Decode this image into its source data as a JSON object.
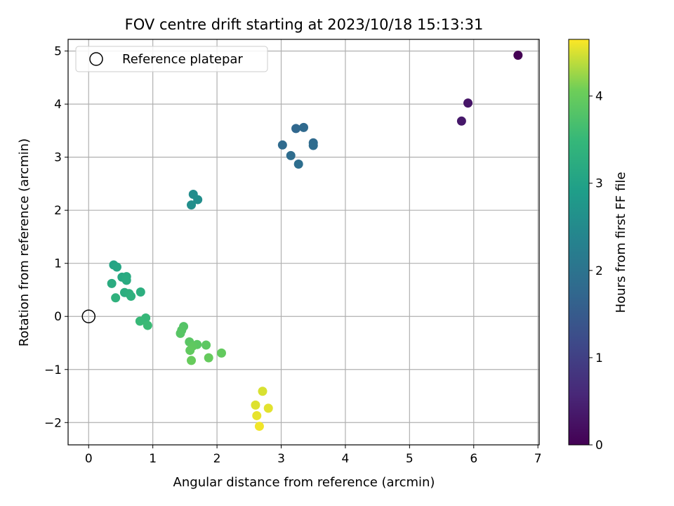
{
  "chart_data": {
    "type": "scatter",
    "title": "FOV centre drift starting at 2023/10/18 15:13:31",
    "xlabel": "Angular distance from reference (arcmin)",
    "ylabel": "Rotation from reference (arcmin)",
    "colorbar_label": "Hours from first FF file",
    "colormap": "viridis",
    "xlim": [
      -0.32,
      7.02
    ],
    "ylim": [
      -2.42,
      5.22
    ],
    "clim": [
      0,
      4.65
    ],
    "x_ticks": [
      0,
      1,
      2,
      3,
      4,
      5,
      6,
      7
    ],
    "y_ticks": [
      -2,
      -1,
      0,
      1,
      2,
      3,
      4,
      5
    ],
    "colorbar_ticks": [
      0,
      1,
      2,
      3,
      4
    ],
    "grid": true,
    "legend": {
      "placement": "top-left",
      "label": "Reference platepar"
    },
    "reference_point": {
      "x": 0,
      "y": 0
    },
    "points": [
      {
        "x": 6.69,
        "y": 4.92,
        "hours": 0.0
      },
      {
        "x": 5.91,
        "y": 4.02,
        "hours": 0.3
      },
      {
        "x": 5.81,
        "y": 3.68,
        "hours": 0.35
      },
      {
        "x": 3.23,
        "y": 3.54,
        "hours": 1.75
      },
      {
        "x": 3.35,
        "y": 3.56,
        "hours": 1.78
      },
      {
        "x": 3.02,
        "y": 3.23,
        "hours": 1.8
      },
      {
        "x": 3.5,
        "y": 3.27,
        "hours": 1.82
      },
      {
        "x": 3.5,
        "y": 3.22,
        "hours": 1.84
      },
      {
        "x": 3.15,
        "y": 3.03,
        "hours": 1.86
      },
      {
        "x": 3.27,
        "y": 2.87,
        "hours": 1.88
      },
      {
        "x": 1.63,
        "y": 2.3,
        "hours": 2.55
      },
      {
        "x": 1.7,
        "y": 2.2,
        "hours": 2.58
      },
      {
        "x": 1.6,
        "y": 2.1,
        "hours": 2.6
      },
      {
        "x": 0.39,
        "y": 0.97,
        "hours": 3.05
      },
      {
        "x": 0.44,
        "y": 0.93,
        "hours": 3.1
      },
      {
        "x": 0.52,
        "y": 0.74,
        "hours": 3.15
      },
      {
        "x": 0.59,
        "y": 0.75,
        "hours": 3.18
      },
      {
        "x": 0.59,
        "y": 0.68,
        "hours": 3.2
      },
      {
        "x": 0.36,
        "y": 0.62,
        "hours": 3.22
      },
      {
        "x": 0.56,
        "y": 0.45,
        "hours": 3.25
      },
      {
        "x": 0.81,
        "y": 0.46,
        "hours": 3.28
      },
      {
        "x": 0.63,
        "y": 0.43,
        "hours": 3.3
      },
      {
        "x": 0.66,
        "y": 0.38,
        "hours": 3.32
      },
      {
        "x": 0.42,
        "y": 0.35,
        "hours": 3.35
      },
      {
        "x": 0.89,
        "y": -0.03,
        "hours": 3.5
      },
      {
        "x": 0.8,
        "y": -0.09,
        "hours": 3.52
      },
      {
        "x": 0.92,
        "y": -0.17,
        "hours": 3.55
      },
      {
        "x": 1.48,
        "y": -0.19,
        "hours": 3.8
      },
      {
        "x": 1.45,
        "y": -0.26,
        "hours": 3.82
      },
      {
        "x": 1.43,
        "y": -0.32,
        "hours": 3.84
      },
      {
        "x": 1.57,
        "y": -0.48,
        "hours": 3.86
      },
      {
        "x": 1.69,
        "y": -0.53,
        "hours": 3.88
      },
      {
        "x": 1.83,
        "y": -0.54,
        "hours": 3.9
      },
      {
        "x": 1.62,
        "y": -0.56,
        "hours": 3.92
      },
      {
        "x": 1.58,
        "y": -0.64,
        "hours": 3.94
      },
      {
        "x": 2.07,
        "y": -0.69,
        "hours": 3.96
      },
      {
        "x": 1.87,
        "y": -0.78,
        "hours": 3.98
      },
      {
        "x": 1.6,
        "y": -0.83,
        "hours": 4.0
      },
      {
        "x": 2.71,
        "y": -1.41,
        "hours": 4.5
      },
      {
        "x": 2.6,
        "y": -1.67,
        "hours": 4.52
      },
      {
        "x": 2.8,
        "y": -1.73,
        "hours": 4.54
      },
      {
        "x": 2.62,
        "y": -1.87,
        "hours": 4.56
      },
      {
        "x": 2.66,
        "y": -2.07,
        "hours": 4.6
      }
    ]
  }
}
